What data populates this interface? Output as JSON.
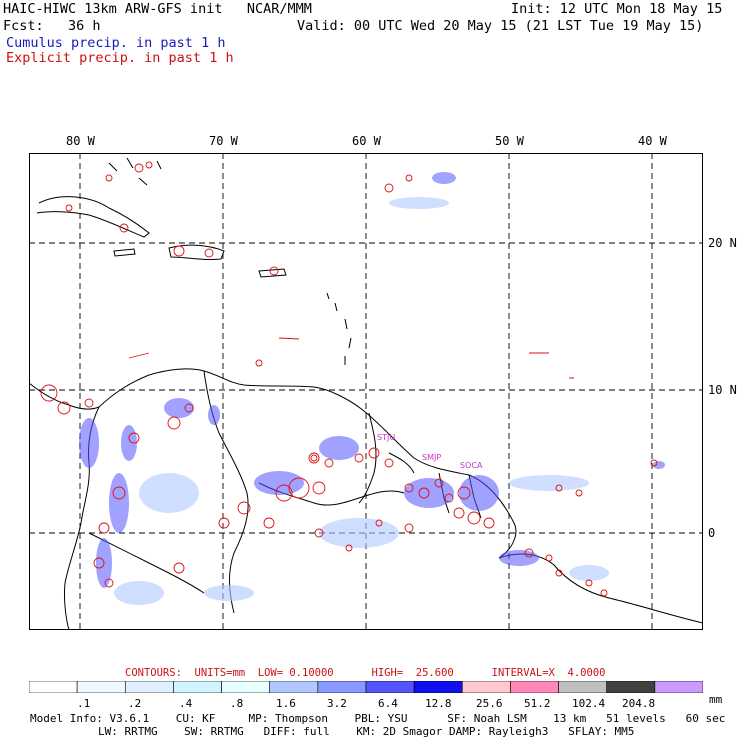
{
  "header": {
    "title_left": "HAIC-HIWC 13km ARW-GFS init   NCAR/MMM",
    "init": "Init: 12 UTC Mon 18 May 15",
    "fcst": "Fcst:   36 h",
    "valid": "Valid: 00 UTC Wed 20 May 15 (21 LST Tue 19 May 15)",
    "legend_cumulus": "Cumulus precip. in past 1 h",
    "legend_explicit": "Explicit precip. in past 1 h"
  },
  "map": {
    "lon_labels": [
      "80 W",
      "70 W",
      "60 W",
      "50 W",
      "40 W"
    ],
    "lat_labels": [
      "20 N",
      "10 N",
      "0"
    ],
    "stations": [
      "STJU",
      "SMJP",
      "SOCA"
    ],
    "colors": {
      "cumulus": "#3333ff",
      "explicit": "#dd1111",
      "coast": "#000000",
      "station": "#cc33cc"
    }
  },
  "contours": {
    "label": "CONTOURS:  UNITS=mm  LOW= 0.10000      HIGH=  25.600      INTERVAL=X  4.0000"
  },
  "colorbar": {
    "ticks": [
      ".1",
      ".2",
      ".4",
      ".8",
      "1.6",
      "3.2",
      "6.4",
      "12.8",
      "25.6",
      "51.2",
      "102.4",
      "204.8"
    ],
    "unit": "mm",
    "colors": [
      "#ffffff",
      "#f0f8ff",
      "#e0f0ff",
      "#d0f4ff",
      "#e8ffff",
      "#b0c8ff",
      "#8899ff",
      "#5555ff",
      "#1010ee",
      "#ffc8d0",
      "#ff88b8",
      "#c0c0c0",
      "#404040",
      "#cc99ff"
    ]
  },
  "model_info": {
    "line1": "Model Info: V3.6.1    CU: KF     MP: Thompson    PBL: YSU      SF: Noah LSM    13 km   51 levels   60 sec",
    "line2": "LW: RRTMG    SW: RRTMG   DIFF: full    KM: 2D Smagor DAMP: Rayleigh3   SFLAY: MM5"
  }
}
